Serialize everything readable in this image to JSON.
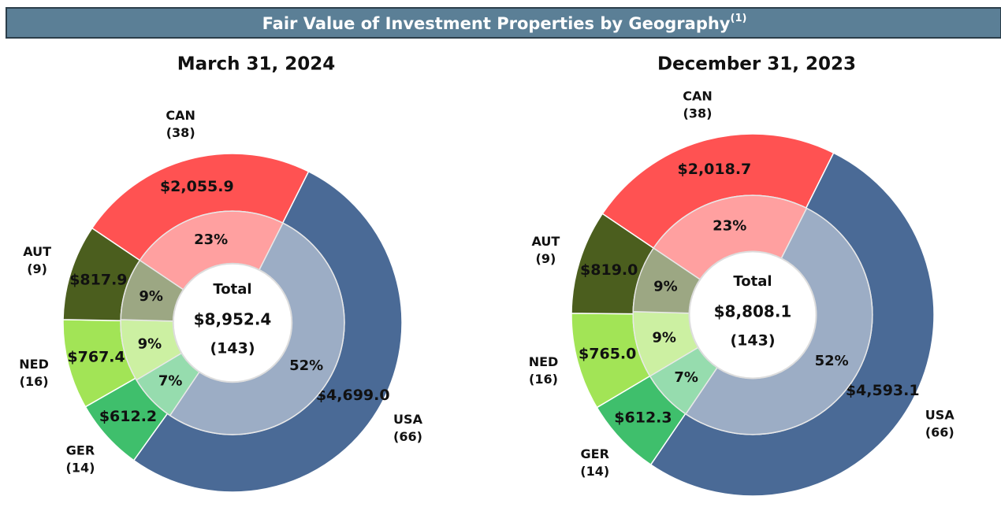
{
  "header": {
    "title": "Fair Value of Investment Properties by Geography",
    "note_marker": "(1)"
  },
  "chart_data": [
    {
      "type": "donut",
      "title": "March 31, 2024",
      "categories": [
        "CAN",
        "USA",
        "GER",
        "NED",
        "AUT"
      ],
      "counts": [
        {
          "value": 38,
          "label": "(38)"
        },
        {
          "value": 66,
          "label": "(66)"
        },
        {
          "value": 14,
          "label": "(14)"
        },
        {
          "value": 16,
          "label": "(16)"
        },
        {
          "value": 9,
          "label": "(9)"
        }
      ],
      "values": [
        2055.9,
        4699.0,
        612.2,
        767.4,
        817.9
      ],
      "value_labels": [
        "$2,055.9",
        "$4,699.0",
        "$612.2",
        "$767.4",
        "$817.9"
      ],
      "percentages": [
        23,
        52,
        7,
        9,
        9
      ],
      "percentage_labels": [
        "23%",
        "52%",
        "7%",
        "9%",
        "9%"
      ],
      "colors": [
        "#ff5252",
        "#4a6a96",
        "#3fbf6c",
        "#a2e456",
        "#4b5e1e"
      ],
      "center_label": "Total",
      "total": {
        "value": 8952.4,
        "label": "$8,952.4"
      },
      "total_count": {
        "value": 143,
        "label": "(143)"
      }
    },
    {
      "type": "donut",
      "title": "December 31, 2023",
      "categories": [
        "CAN",
        "USA",
        "GER",
        "NED",
        "AUT"
      ],
      "counts": [
        {
          "value": 38,
          "label": "(38)"
        },
        {
          "value": 66,
          "label": "(66)"
        },
        {
          "value": 14,
          "label": "(14)"
        },
        {
          "value": 16,
          "label": "(16)"
        },
        {
          "value": 9,
          "label": "(9)"
        }
      ],
      "values": [
        2018.7,
        4593.1,
        612.3,
        765.0,
        819.0
      ],
      "value_labels": [
        "$2,018.7",
        "$4,593.1",
        "$612.3",
        "$765.0",
        "$819.0"
      ],
      "percentages": [
        23,
        52,
        7,
        9,
        9
      ],
      "percentage_labels": [
        "23%",
        "52%",
        "7%",
        "9%",
        "9%"
      ],
      "colors": [
        "#ff5252",
        "#4a6a96",
        "#3fbf6c",
        "#a2e456",
        "#4b5e1e"
      ],
      "center_label": "Total",
      "total": {
        "value": 8808.1,
        "label": "$8,808.1"
      },
      "total_count": {
        "value": 143,
        "label": "(143)"
      }
    }
  ]
}
